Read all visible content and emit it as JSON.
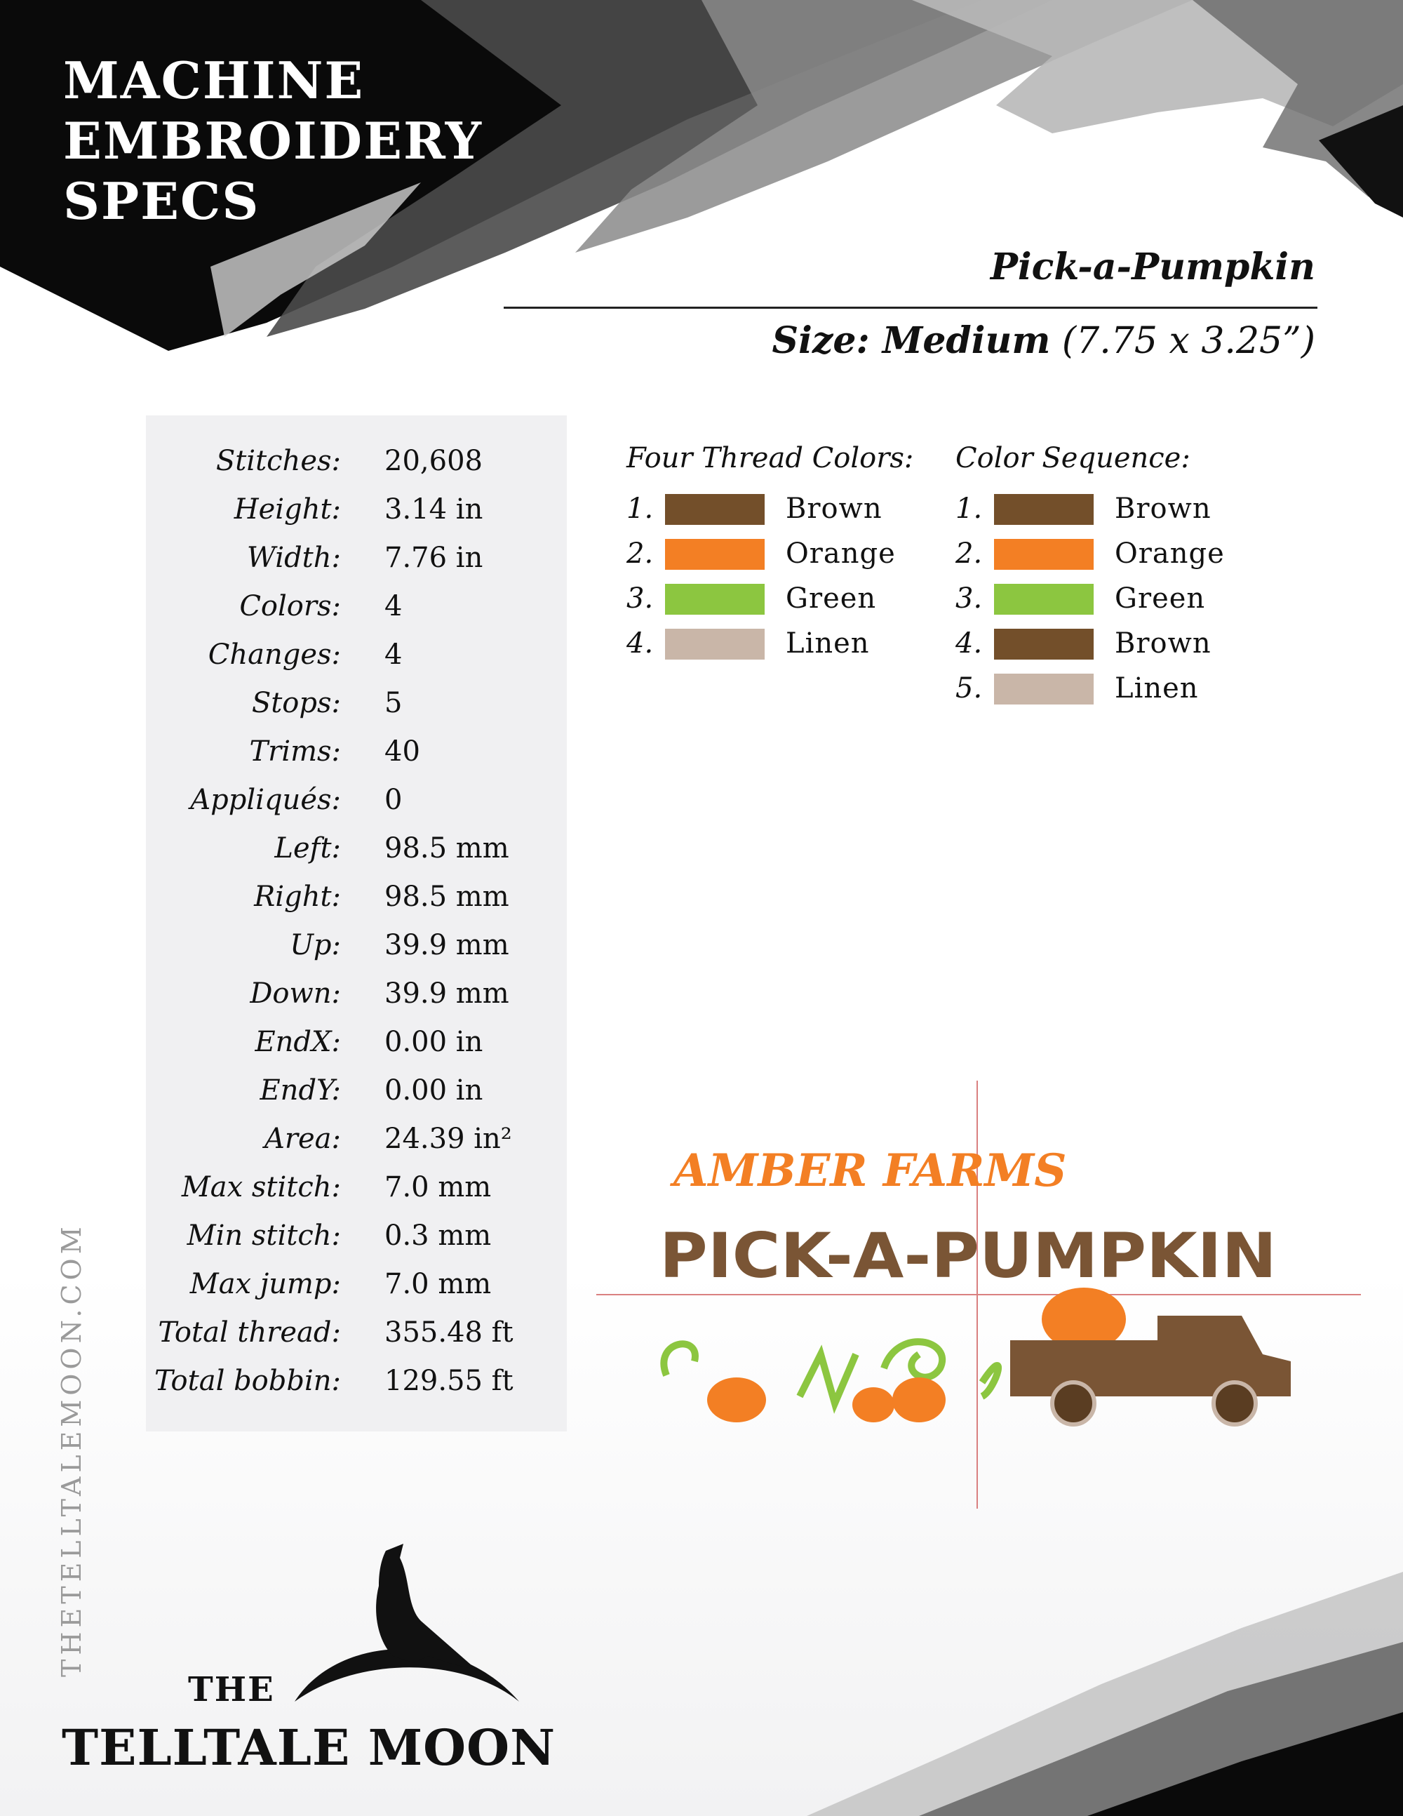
{
  "header": {
    "title_lines": [
      "MACHINE",
      "EMBROIDERY",
      "SPECS"
    ],
    "design_name": "Pick-a-Pumpkin",
    "size_label": "Size: Medium",
    "size_dims": "(7.75 x 3.25”)"
  },
  "specs": [
    {
      "label": "Stitches:",
      "value": "20,608"
    },
    {
      "label": "Height:",
      "value": "3.14 in"
    },
    {
      "label": "Width:",
      "value": "7.76 in"
    },
    {
      "label": "Colors:",
      "value": "4"
    },
    {
      "label": "Changes:",
      "value": "4"
    },
    {
      "label": "Stops:",
      "value": "5"
    },
    {
      "label": "Trims:",
      "value": "40"
    },
    {
      "label": "Appliqués:",
      "value": "0"
    },
    {
      "label": "Left:",
      "value": "98.5 mm"
    },
    {
      "label": "Right:",
      "value": "98.5 mm"
    },
    {
      "label": "Up:",
      "value": "39.9 mm"
    },
    {
      "label": "Down:",
      "value": "39.9 mm"
    },
    {
      "label": "EndX:",
      "value": "0.00 in"
    },
    {
      "label": "EndY:",
      "value": "0.00 in"
    },
    {
      "label": "Area:",
      "value": "24.39 in²"
    },
    {
      "label": "Max stitch:",
      "value": "7.0 mm"
    },
    {
      "label": "Min stitch:",
      "value": "0.3 mm"
    },
    {
      "label": "Max jump:",
      "value": "7.0 mm"
    },
    {
      "label": "Total thread:",
      "value": "355.48 ft"
    },
    {
      "label": "Total bobbin:",
      "value": "129.55 ft"
    }
  ],
  "thread_colors": {
    "heading": "Four Thread Colors:",
    "items": [
      {
        "num": "1.",
        "name": "Brown",
        "color": "#734f2a"
      },
      {
        "num": "2.",
        "name": "Orange",
        "color": "#f37f24"
      },
      {
        "num": "3.",
        "name": "Green",
        "color": "#8cc640"
      },
      {
        "num": "4.",
        "name": "Linen",
        "color": "#c9b6a8"
      }
    ]
  },
  "color_sequence": {
    "heading": "Color Sequence:",
    "items": [
      {
        "num": "1.",
        "name": "Brown",
        "color": "#734f2a"
      },
      {
        "num": "2.",
        "name": "Orange",
        "color": "#f37f24"
      },
      {
        "num": "3.",
        "name": "Green",
        "color": "#8cc640"
      },
      {
        "num": "4.",
        "name": "Brown",
        "color": "#734f2a"
      },
      {
        "num": "5.",
        "name": "Linen",
        "color": "#c9b6a8"
      }
    ]
  },
  "design_preview": {
    "top_text": "AMBER FARMS",
    "main_text": "PICK-A-PUMPKIN"
  },
  "side_text": "THETELLTALEMOON.COM",
  "logo": {
    "line1": "THE",
    "line2": "TELLTALE MOON"
  }
}
